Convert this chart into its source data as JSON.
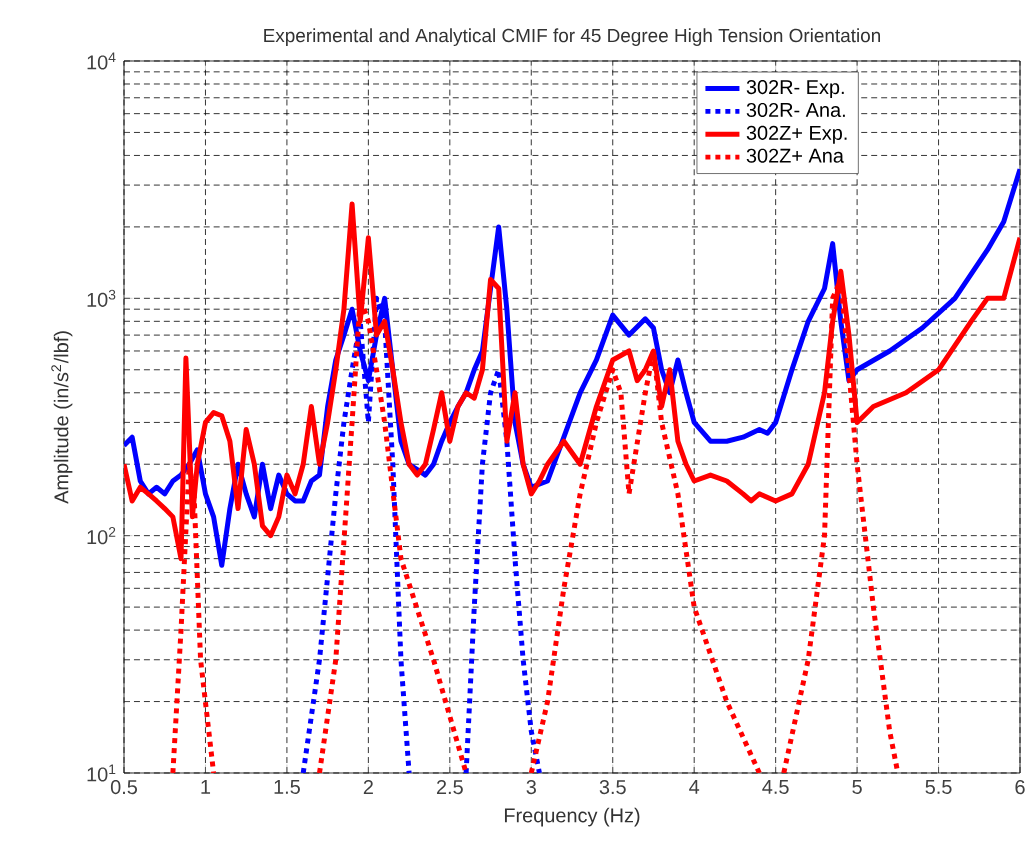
{
  "chart_data": {
    "type": "line",
    "title": "Experimental and Analytical CMIF for 45 Degree High Tension Orientation",
    "xlabel": "Frequency (Hz)",
    "ylabel": "Amplitude (in/s$^{2}$/lbf)",
    "xlim": [
      0.5,
      6
    ],
    "xticks": [
      0.5,
      1,
      1.5,
      2,
      2.5,
      3,
      3.5,
      4,
      4.5,
      5,
      5.5,
      6
    ],
    "ylim": [
      10,
      10000
    ],
    "yticks": [
      {
        "value": 10,
        "label": "10$^{1}$"
      },
      {
        "value": 100,
        "label": "10$^{2}$"
      },
      {
        "value": 1000,
        "label": "10$^{3}$"
      },
      {
        "value": 10000,
        "label": "10$^{4}$"
      }
    ],
    "log": "y",
    "grid": true,
    "legend": "top right",
    "series": [
      {
        "name": "302R- Exp.",
        "color": "#0000ff",
        "line_style": "solid",
        "x": [
          0.5,
          0.55,
          0.6,
          0.65,
          0.7,
          0.75,
          0.8,
          0.85,
          0.9,
          0.95,
          1.0,
          1.05,
          1.1,
          1.15,
          1.2,
          1.25,
          1.3,
          1.35,
          1.4,
          1.45,
          1.5,
          1.55,
          1.6,
          1.65,
          1.7,
          1.75,
          1.8,
          1.85,
          1.9,
          1.95,
          2.0,
          2.05,
          2.1,
          2.15,
          2.2,
          2.25,
          2.3,
          2.35,
          2.4,
          2.45,
          2.5,
          2.55,
          2.6,
          2.65,
          2.7,
          2.75,
          2.8,
          2.85,
          2.9,
          2.95,
          3.0,
          3.1,
          3.2,
          3.3,
          3.4,
          3.5,
          3.6,
          3.7,
          3.75,
          3.8,
          3.85,
          3.9,
          3.95,
          4.0,
          4.1,
          4.2,
          4.3,
          4.4,
          4.45,
          4.5,
          4.6,
          4.7,
          4.8,
          4.85,
          4.9,
          4.95,
          5.0,
          5.2,
          5.4,
          5.6,
          5.8,
          5.9,
          6.0
        ],
        "values": [
          240,
          260,
          170,
          150,
          160,
          150,
          170,
          180,
          200,
          230,
          150,
          120,
          75,
          130,
          200,
          150,
          120,
          200,
          130,
          180,
          150,
          140,
          140,
          170,
          180,
          350,
          550,
          700,
          900,
          600,
          450,
          700,
          1000,
          500,
          250,
          200,
          190,
          180,
          200,
          250,
          300,
          350,
          400,
          500,
          600,
          1100,
          2000,
          900,
          300,
          200,
          160,
          170,
          260,
          400,
          550,
          850,
          700,
          820,
          750,
          500,
          400,
          550,
          400,
          300,
          250,
          250,
          260,
          280,
          270,
          300,
          500,
          800,
          1100,
          1700,
          800,
          450,
          500,
          600,
          750,
          1000,
          1600,
          2100,
          3500
        ]
      },
      {
        "name": "302R- Ana.",
        "color": "#0000ff",
        "line_style": "dotted",
        "x": [
          1.6,
          1.7,
          1.8,
          1.85,
          1.9,
          1.95,
          2.0,
          2.05,
          2.1,
          2.15,
          2.2,
          2.25,
          2.4,
          2.6,
          2.65,
          2.7,
          2.75,
          2.8,
          2.85,
          2.9,
          2.95,
          3.0,
          3.05
        ],
        "values": [
          10,
          30,
          150,
          300,
          500,
          800,
          300,
          1000,
          800,
          200,
          30,
          10,
          null,
          10,
          50,
          200,
          400,
          500,
          250,
          80,
          30,
          15,
          10
        ]
      },
      {
        "name": "302Z+ Exp.",
        "color": "#ff0000",
        "line_style": "solid",
        "x": [
          0.5,
          0.55,
          0.6,
          0.65,
          0.7,
          0.75,
          0.8,
          0.85,
          0.88,
          0.92,
          0.95,
          1.0,
          1.05,
          1.1,
          1.15,
          1.2,
          1.25,
          1.3,
          1.35,
          1.4,
          1.45,
          1.5,
          1.55,
          1.6,
          1.65,
          1.7,
          1.75,
          1.8,
          1.85,
          1.9,
          1.95,
          2.0,
          2.05,
          2.1,
          2.15,
          2.2,
          2.25,
          2.3,
          2.35,
          2.4,
          2.45,
          2.5,
          2.55,
          2.6,
          2.65,
          2.7,
          2.75,
          2.8,
          2.85,
          2.9,
          2.95,
          3.0,
          3.05,
          3.1,
          3.2,
          3.3,
          3.4,
          3.5,
          3.6,
          3.65,
          3.7,
          3.75,
          3.8,
          3.85,
          3.9,
          3.95,
          4.0,
          4.1,
          4.2,
          4.3,
          4.35,
          4.4,
          4.5,
          4.6,
          4.7,
          4.8,
          4.85,
          4.9,
          4.95,
          5.0,
          5.1,
          5.3,
          5.5,
          5.7,
          5.8,
          5.9,
          6.0
        ],
        "values": [
          200,
          140,
          160,
          150,
          140,
          130,
          120,
          80,
          560,
          120,
          200,
          300,
          330,
          320,
          250,
          130,
          280,
          200,
          110,
          100,
          120,
          180,
          150,
          200,
          350,
          200,
          300,
          500,
          900,
          2500,
          800,
          1800,
          700,
          800,
          500,
          300,
          200,
          180,
          200,
          280,
          400,
          250,
          350,
          400,
          380,
          500,
          1200,
          1100,
          250,
          400,
          200,
          150,
          170,
          200,
          250,
          200,
          350,
          550,
          600,
          450,
          500,
          600,
          350,
          500,
          250,
          200,
          170,
          180,
          170,
          150,
          140,
          150,
          140,
          150,
          200,
          400,
          800,
          1300,
          700,
          300,
          350,
          400,
          500,
          800,
          1000,
          1000,
          1800
        ]
      },
      {
        "name": "302Z+ Ana",
        "color": "#ff0000",
        "line_style": "dotted",
        "x": [
          0.8,
          0.85,
          0.9,
          0.93,
          0.97,
          1.05,
          1.4,
          1.7,
          1.8,
          1.9,
          1.95,
          2.0,
          2.05,
          2.1,
          2.2,
          2.4,
          2.6,
          2.8,
          3.0,
          3.1,
          3.2,
          3.3,
          3.4,
          3.5,
          3.55,
          3.6,
          3.7,
          3.75,
          3.8,
          3.9,
          4.0,
          4.2,
          4.4,
          4.5,
          4.55,
          4.7,
          4.8,
          4.85,
          4.9,
          5.0,
          5.1,
          5.2,
          5.25
        ],
        "values": [
          10,
          40,
          200,
          150,
          30,
          10,
          null,
          10,
          30,
          300,
          1000,
          800,
          500,
          300,
          80,
          30,
          10,
          null,
          10,
          20,
          60,
          150,
          300,
          500,
          400,
          150,
          400,
          600,
          300,
          150,
          50,
          20,
          10,
          null,
          10,
          30,
          100,
          1000,
          1200,
          200,
          50,
          15,
          10
        ]
      }
    ]
  }
}
